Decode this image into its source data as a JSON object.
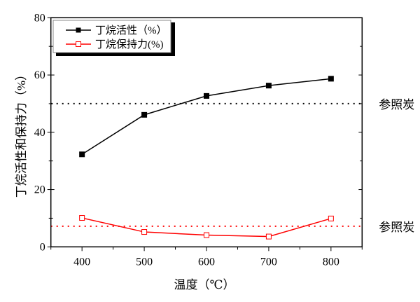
{
  "chart_data": {
    "type": "line",
    "title": "",
    "xlabel": "温度（℃）",
    "ylabel": "丁烷活性和保持力（%）",
    "xlim": [
      350,
      850
    ],
    "ylim": [
      0,
      80
    ],
    "xticks": [
      400,
      500,
      600,
      700,
      800
    ],
    "yticks": [
      0,
      20,
      40,
      60,
      80
    ],
    "grid": false,
    "legend_placement": "top-left",
    "x": [
      400,
      500,
      600,
      700,
      800
    ],
    "series": [
      {
        "name": "丁烷活性（%）",
        "values": [
          32.3,
          46.1,
          52.7,
          56.3,
          58.7
        ],
        "color": "#000000",
        "marker": "filled-square"
      },
      {
        "name": "丁烷保持力(%)",
        "values": [
          10.1,
          5.2,
          4.1,
          3.6,
          9.9
        ],
        "color": "#ff0000",
        "marker": "open-square"
      }
    ],
    "reference_lines": [
      {
        "label": "参照炭",
        "value": 50,
        "color": "#000000",
        "style": "dotted"
      },
      {
        "label": "参照炭",
        "value": 7.2,
        "color": "#ff0000",
        "style": "dotted"
      }
    ]
  }
}
